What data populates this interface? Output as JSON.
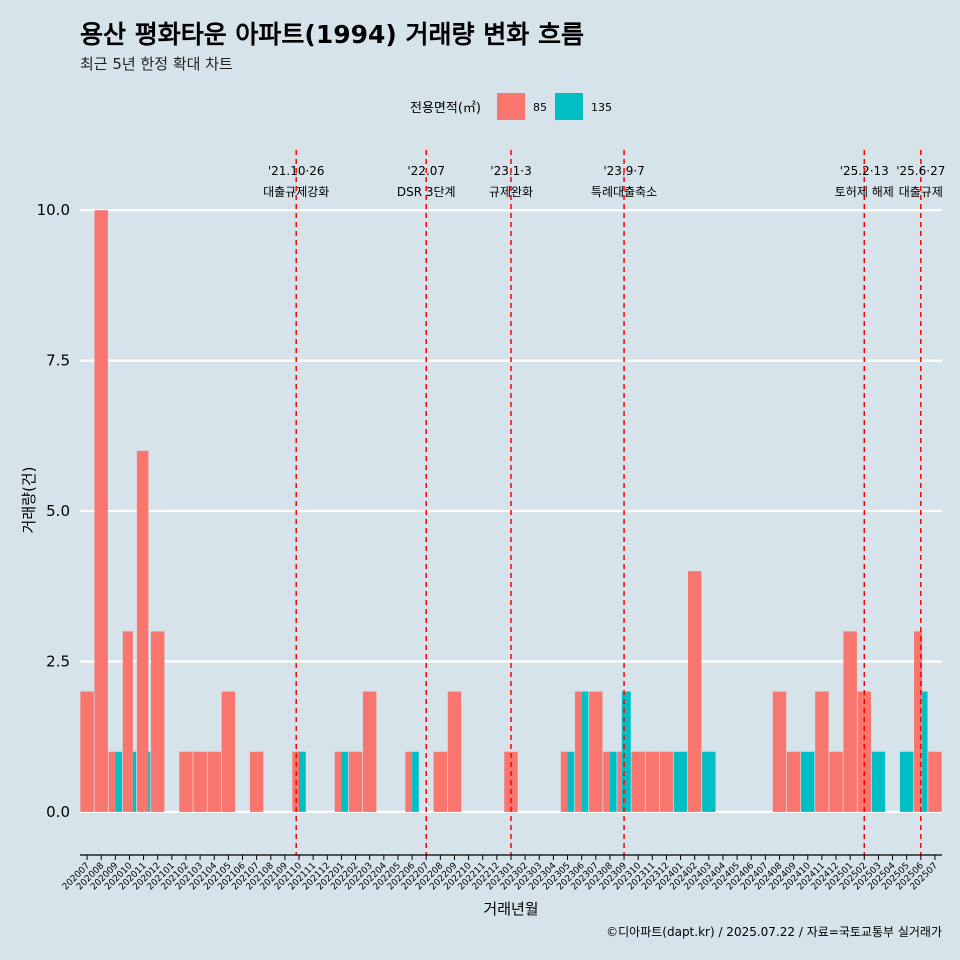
{
  "chart_data": {
    "type": "bar",
    "title": "용산 평화타운 아파트(1994) 거래량 변화 흐름",
    "subtitle": "최근 5년 한정 확대 차트",
    "xlabel": "거래년월",
    "ylabel": "거래량(건)",
    "ylim": [
      -0.55,
      11.0
    ],
    "yticks": [
      0.0,
      2.5,
      5.0,
      7.5,
      10.0
    ],
    "ytick_labels": [
      "0.0",
      "2.5",
      "5.0",
      "7.5",
      "10.0"
    ],
    "grid": true,
    "legend": {
      "title": "전용면적(㎡)",
      "position": "top",
      "entries": [
        {
          "name": "85",
          "color": "#F8766D"
        },
        {
          "name": "135",
          "color": "#00BFC4"
        }
      ]
    },
    "categories": [
      "202007",
      "202008",
      "202009",
      "202010",
      "202011",
      "202012",
      "202101",
      "202102",
      "202103",
      "202104",
      "202105",
      "202106",
      "202107",
      "202108",
      "202109",
      "202110",
      "202111",
      "202112",
      "202201",
      "202202",
      "202203",
      "202204",
      "202205",
      "202206",
      "202207",
      "202208",
      "202209",
      "202210",
      "202211",
      "202212",
      "202301",
      "202302",
      "202303",
      "202304",
      "202305",
      "202306",
      "202307",
      "202308",
      "202309",
      "202310",
      "202311",
      "202312",
      "202401",
      "202402",
      "202403",
      "202404",
      "202405",
      "202406",
      "202407",
      "202408",
      "202409",
      "202410",
      "202411",
      "202412",
      "202501",
      "202502",
      "202503",
      "202504",
      "202505",
      "202506",
      "202507"
    ],
    "series": [
      {
        "name": "85",
        "color": "#F8766D",
        "values": [
          2,
          10,
          1,
          3,
          6,
          3,
          0,
          1,
          1,
          1,
          2,
          0,
          1,
          0,
          0,
          1,
          0,
          0,
          1,
          1,
          2,
          0,
          0,
          1,
          0,
          1,
          2,
          0,
          0,
          0,
          1,
          0,
          0,
          0,
          1,
          2,
          2,
          1,
          1,
          1,
          1,
          1,
          0,
          4,
          0,
          0,
          0,
          0,
          0,
          2,
          1,
          0,
          2,
          1,
          3,
          2,
          0,
          0,
          0,
          3,
          1
        ]
      },
      {
        "name": "135",
        "color": "#00BFC4",
        "values": [
          0,
          0,
          1,
          1,
          1,
          0,
          0,
          0,
          0,
          0,
          0,
          0,
          0,
          0,
          0,
          1,
          0,
          0,
          1,
          0,
          0,
          0,
          0,
          1,
          0,
          0,
          0,
          0,
          0,
          0,
          0,
          0,
          0,
          0,
          1,
          2,
          0,
          1,
          2,
          0,
          0,
          0,
          1,
          0,
          1,
          0,
          0,
          0,
          0,
          0,
          0,
          1,
          0,
          0,
          0,
          0,
          1,
          0,
          1,
          2,
          0
        ]
      }
    ],
    "events": [
      {
        "date": "'21.10·26",
        "label": "대출규제강화",
        "position": 15.3
      },
      {
        "date": "'22.07",
        "label": "DSR 3단계",
        "position": 24.5
      },
      {
        "date": "'23.1·3",
        "label": "규제완화",
        "position": 30.5
      },
      {
        "date": "'23.9·7",
        "label": "특례대출축소",
        "position": 38.5
      },
      {
        "date": "'25.2·13",
        "label": "토허제 해제",
        "position": 55.5
      },
      {
        "date": "'25.6·27",
        "label": "대출규제",
        "position": 59.5
      }
    ],
    "caption": "©디아파트(dapt.kr) / 2025.07.22 / 자료=국토교통부 실거래가"
  }
}
